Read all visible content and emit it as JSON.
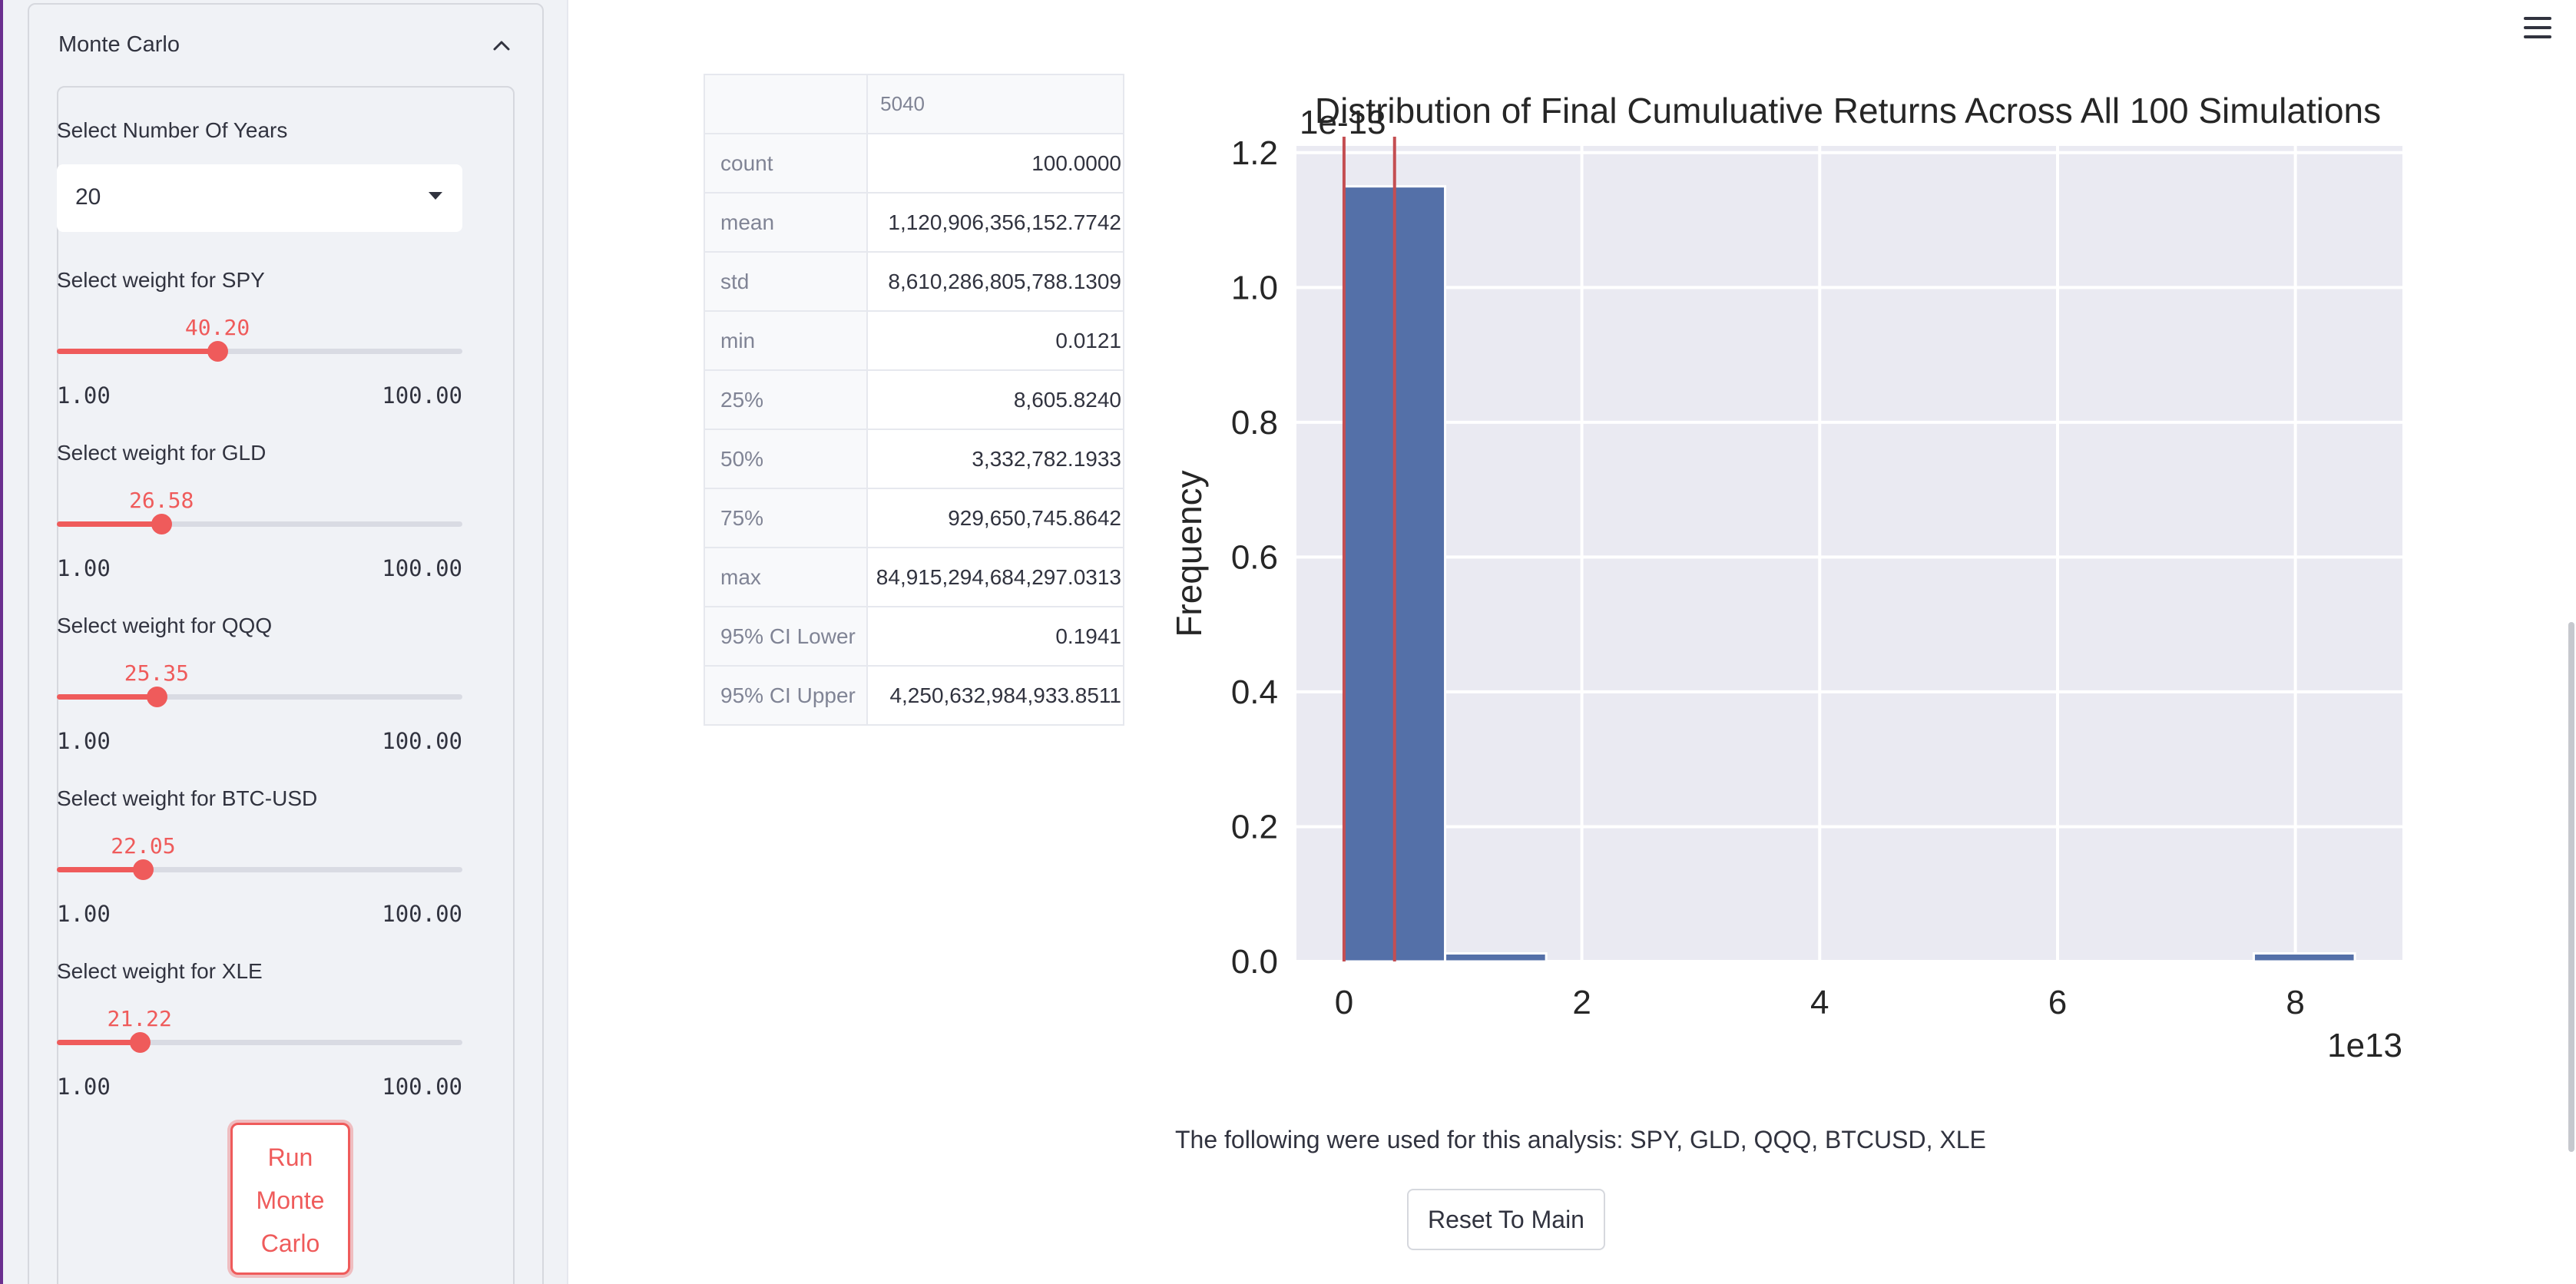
{
  "sidebar": {
    "expander_title": "Monte Carlo",
    "years_label": "Select Number Of Years",
    "years_value": "20",
    "sliders": [
      {
        "label": "Select weight for SPY",
        "value": "40.20",
        "min": "1.00",
        "max": "100.00",
        "level": 0.396
      },
      {
        "label": "Select weight for GLD",
        "value": "26.58",
        "min": "1.00",
        "max": "100.00",
        "level": 0.258
      },
      {
        "label": "Select weight for QQQ",
        "value": "25.35",
        "min": "1.00",
        "max": "100.00",
        "level": 0.246
      },
      {
        "label": "Select weight for BTC-USD",
        "value": "22.05",
        "min": "1.00",
        "max": "100.00",
        "level": 0.213
      },
      {
        "label": "Select weight for XLE",
        "value": "21.22",
        "min": "1.00",
        "max": "100.00",
        "level": 0.204
      }
    ],
    "run_button": [
      "Run",
      "Monte",
      "Carlo"
    ]
  },
  "table": {
    "column_header": "5040",
    "rows": [
      {
        "index": "count",
        "value": "100.0000"
      },
      {
        "index": "mean",
        "value": "1,120,906,356,152.7742"
      },
      {
        "index": "std",
        "value": "8,610,286,805,788.1309"
      },
      {
        "index": "min",
        "value": "0.0121"
      },
      {
        "index": "25%",
        "value": "8,605.8240"
      },
      {
        "index": "50%",
        "value": "3,332,782.1933"
      },
      {
        "index": "75%",
        "value": "929,650,745.8642"
      },
      {
        "index": "max",
        "value": "84,915,294,684,297.0313"
      },
      {
        "index": "95% CI Lower",
        "value": "0.1941"
      },
      {
        "index": "95% CI Upper",
        "value": "4,250,632,984,933.8511"
      }
    ]
  },
  "chart_data": {
    "type": "bar",
    "title": "Distribution of Final Cumuluative Returns Across All 100 Simulations",
    "xlabel": "",
    "ylabel": "Frequency",
    "x_offset_label": "1e13",
    "y_offset_label": "1e-13",
    "xlim": [
      -0.4,
      8.9
    ],
    "ylim": [
      0,
      1.21
    ],
    "x_ticks": [
      "0",
      "2",
      "4",
      "6",
      "8"
    ],
    "y_ticks": [
      "0.0",
      "0.2",
      "0.4",
      "0.6",
      "0.8",
      "1.0",
      "1.2"
    ],
    "grid": true,
    "bins": [
      {
        "x0": 0.0,
        "x1": 0.85,
        "value": 1.15
      },
      {
        "x0": 0.85,
        "x1": 1.7,
        "value": 0.012
      },
      {
        "x0": 7.65,
        "x1": 8.5,
        "value": 0.012
      }
    ],
    "vlines": [
      0.0,
      0.425
    ],
    "colors": {
      "bar": "#5470a8",
      "vline": "#c44e52",
      "plot_bg": "#eaeaf2",
      "grid": "#ffffff"
    }
  },
  "caption": "The following were used for this analysis: SPY, GLD, QQQ, BTCUSD, XLE",
  "reset_button": "Reset To Main"
}
